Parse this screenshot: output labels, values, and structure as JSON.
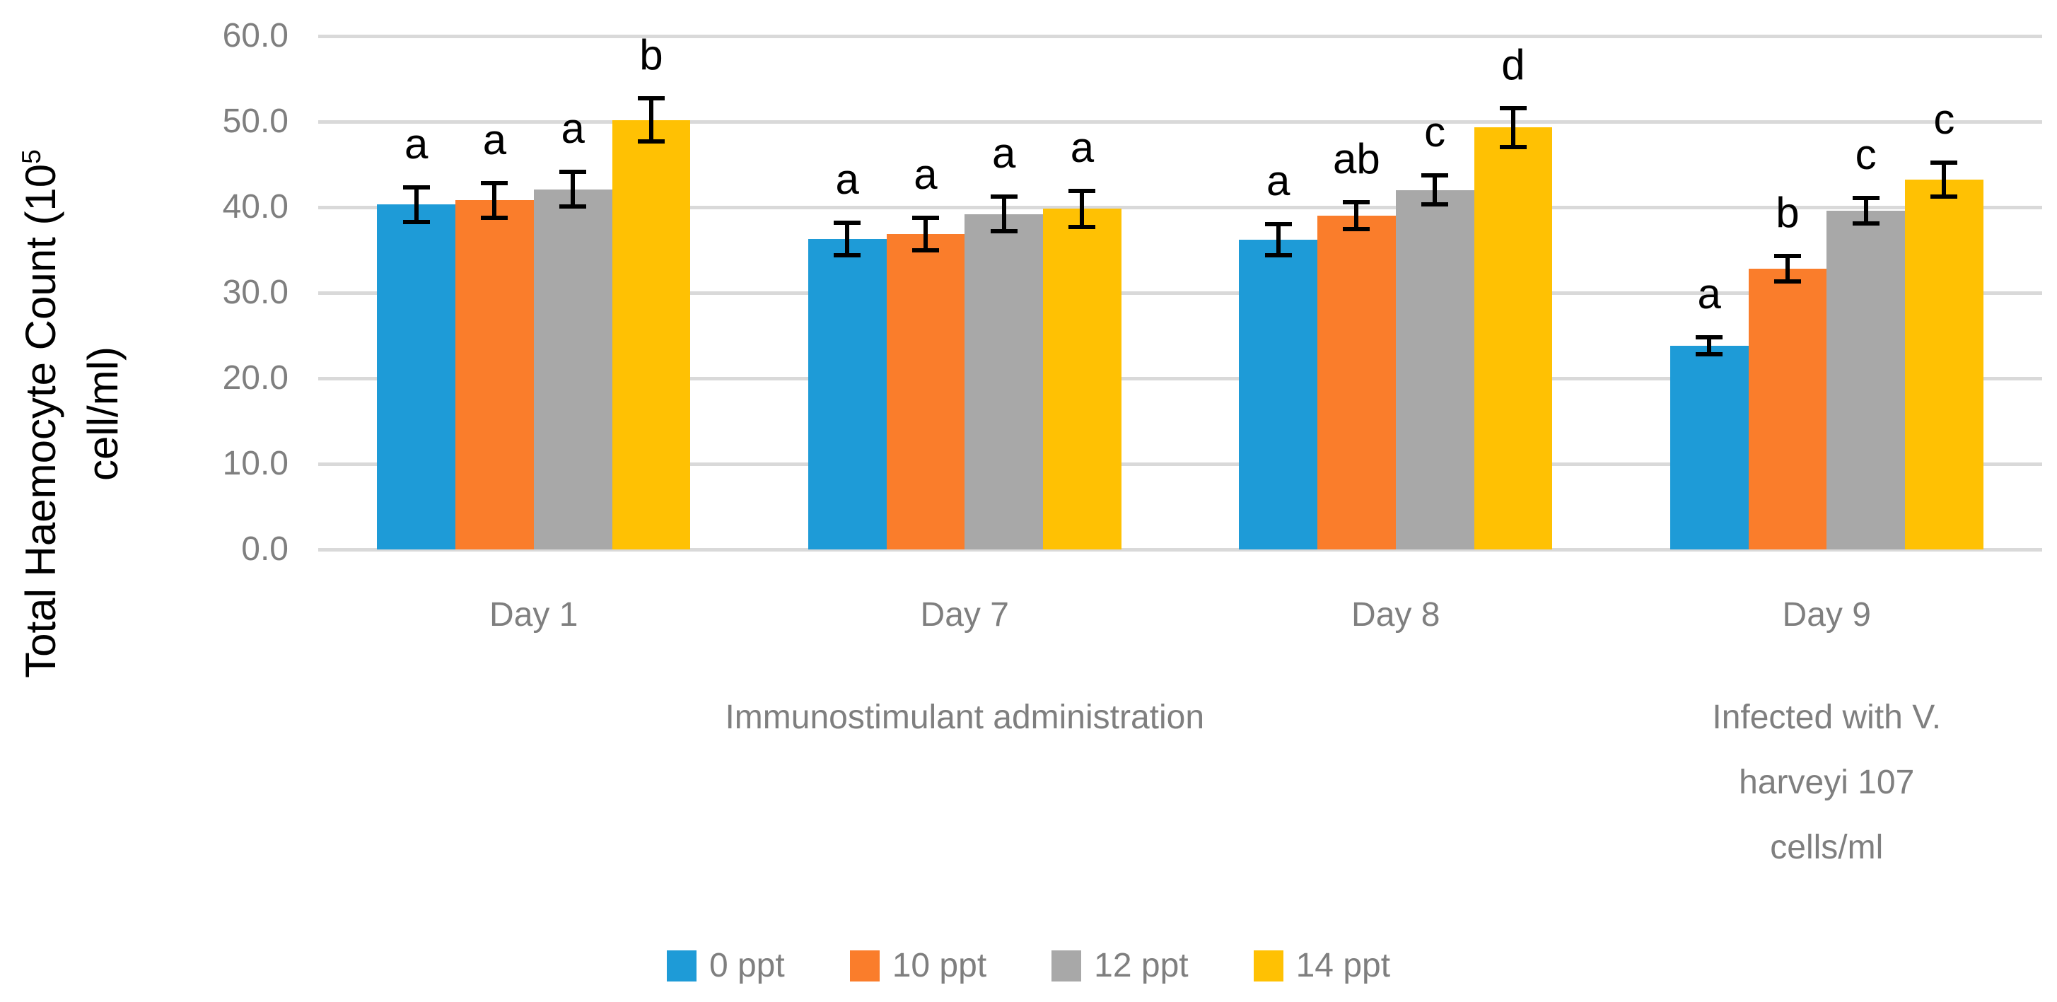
{
  "chart_data": {
    "type": "bar",
    "title": "",
    "ylabel": {
      "line1_prefix": "Total Haemocyte Count (10",
      "superscript": "5",
      "line2": "cell/ml)"
    },
    "yticks": [
      "0.0",
      "10.0",
      "20.0",
      "30.0",
      "40.0",
      "50.0",
      "60.0"
    ],
    "ylim": [
      0,
      60
    ],
    "grid": true,
    "legend_position": "bottom",
    "categories": [
      "Day 1",
      "Day 7",
      "Day 8",
      "Day 9"
    ],
    "category_groups": [
      {
        "label": "Immunostimulant administration",
        "start": 0,
        "end": 2,
        "wrap_lines": [
          "Immunostimulant administration"
        ]
      },
      {
        "label": "Infected with V. harveyi 107 cells/ml",
        "start": 3,
        "end": 3,
        "wrap_lines": [
          "Infected with V.",
          "harveyi 107",
          "cells/ml"
        ]
      }
    ],
    "series": [
      {
        "name": "0 ppt",
        "color": "#1E9BD7",
        "values": [
          40.3,
          36.3,
          36.2,
          23.8
        ],
        "errors": [
          2.0,
          1.9,
          1.8,
          1.0
        ],
        "letters": [
          "a",
          "a",
          "a",
          "a"
        ]
      },
      {
        "name": "10 ppt",
        "color": "#FA7D2B",
        "values": [
          40.8,
          36.9,
          39.0,
          32.8
        ],
        "errors": [
          2.0,
          1.9,
          1.6,
          1.5
        ],
        "letters": [
          "a",
          "a",
          "ab",
          "b"
        ]
      },
      {
        "name": "12 ppt",
        "color": "#A8A8A8",
        "values": [
          42.1,
          39.2,
          42.0,
          39.6
        ],
        "errors": [
          2.0,
          2.0,
          1.7,
          1.5
        ],
        "letters": [
          "a",
          "a",
          "c",
          "c"
        ]
      },
      {
        "name": "14 ppt",
        "color": "#FFC103",
        "values": [
          50.2,
          39.8,
          49.3,
          43.2
        ],
        "errors": [
          2.5,
          2.1,
          2.3,
          2.0
        ],
        "letters": [
          "b",
          "a",
          "d",
          "c"
        ]
      }
    ],
    "colors": {
      "gridline": "#D9D9D9",
      "tick_label": "#7F7F7F",
      "error_bar": "#000000",
      "letter": "#000000",
      "axis_title": "#000000",
      "background": "#FFFFFF"
    }
  }
}
